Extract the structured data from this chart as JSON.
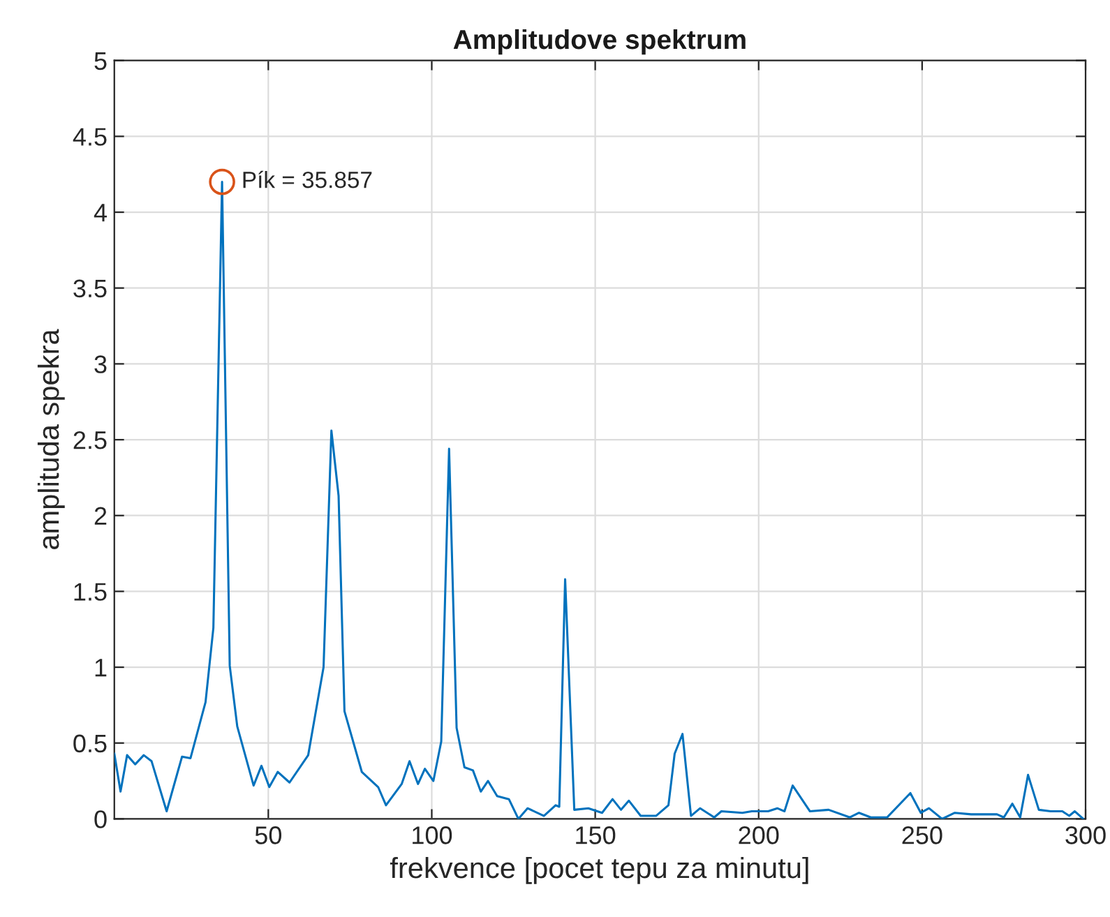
{
  "chart_data": {
    "type": "line",
    "title": "Amplitudove spektrum",
    "xlabel": "frekvence [pocet tepu za minutu]",
    "ylabel": "amplituda spekra",
    "series": [
      {
        "color": "#0072bd",
        "x": [
          2.9,
          4.8,
          6.8,
          9.3,
          11.9,
          14.3,
          18.9,
          23.6,
          26.2,
          30.8,
          33.2,
          35.857,
          38.2,
          40.5,
          45.5,
          47.9,
          50.3,
          52.9,
          56.5,
          62.2,
          66.9,
          69.3,
          71.5,
          73.3,
          78.6,
          83.6,
          86.0,
          90.8,
          93.2,
          95.8,
          97.9,
          100.5,
          102.9,
          105.3,
          107.6,
          110,
          112.6,
          115,
          117.2,
          120,
          123.6,
          126.5,
          129.3,
          134.3,
          137.9,
          139,
          140.8,
          143.6,
          147.9,
          152.1,
          155.3,
          157.9,
          160.3,
          163.9,
          168.6,
          172.4,
          174.3,
          176.7,
          179.3,
          182.1,
          186.4,
          188.6,
          195,
          197.9,
          202.9,
          205.7,
          207.9,
          210.4,
          215.7,
          221.4,
          227.9,
          230.7,
          234.3,
          239.3,
          246.4,
          249.6,
          252.1,
          256.1,
          260,
          265,
          272.9,
          275,
          277.6,
          280,
          282.4,
          285.7,
          289.3,
          292.9,
          295,
          296.7,
          299.3
        ],
        "values": [
          0.43,
          0.18,
          0.42,
          0.36,
          0.42,
          0.38,
          0.05,
          0.41,
          0.4,
          0.77,
          1.26,
          4.2,
          1.01,
          0.61,
          0.22,
          0.35,
          0.21,
          0.31,
          0.24,
          0.42,
          1.0,
          2.56,
          2.13,
          0.71,
          0.31,
          0.21,
          0.09,
          0.23,
          0.38,
          0.23,
          0.33,
          0.25,
          0.51,
          2.44,
          0.6,
          0.34,
          0.32,
          0.18,
          0.25,
          0.15,
          0.13,
          0,
          0.07,
          0.02,
          0.09,
          0.08,
          1.58,
          0.06,
          0.07,
          0.04,
          0.13,
          0.06,
          0.12,
          0.02,
          0.02,
          0.09,
          0.43,
          0.56,
          0.02,
          0.07,
          0.01,
          0.05,
          0.04,
          0.05,
          0.05,
          0.07,
          0.05,
          0.22,
          0.05,
          0.06,
          0.01,
          0.04,
          0.01,
          0.01,
          0.17,
          0.04,
          0.07,
          0,
          0.04,
          0.03,
          0.03,
          0.01,
          0.1,
          0.01,
          0.29,
          0.06,
          0.05,
          0.05,
          0.02,
          0.05,
          0
        ]
      },
      {
        "type": "scatter",
        "marker": "circle",
        "color": "#d95319",
        "x": [
          35.857
        ],
        "values": [
          4.2
        ]
      }
    ],
    "annotations": [
      {
        "text": "Pík = 35.857",
        "x": 35.857,
        "y": 4.2
      }
    ],
    "xlim": [
      2.9,
      300
    ],
    "xticks": [
      50,
      100,
      150,
      200,
      250,
      300
    ],
    "ylim": [
      0,
      5
    ],
    "yticks": [
      0,
      0.5,
      1,
      1.5,
      2,
      2.5,
      3,
      3.5,
      4,
      4.5,
      5
    ],
    "grid": true,
    "marker": "none",
    "line_style": "solid"
  }
}
